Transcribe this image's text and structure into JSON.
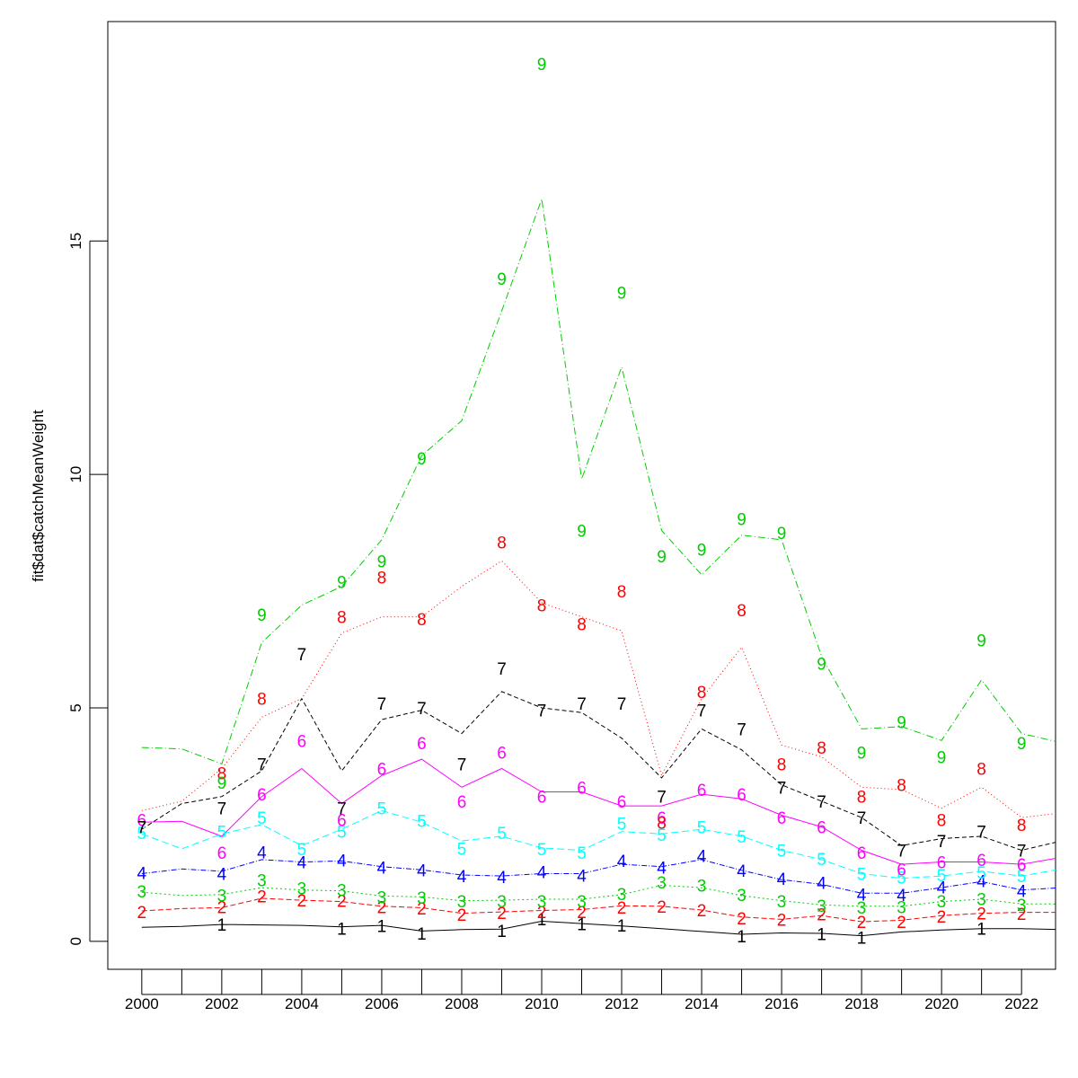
{
  "chart_data": {
    "type": "line",
    "title": "",
    "xlabel": "",
    "ylabel": "fit$dat$catchMeanWeight",
    "xlim": [
      1999.15,
      2022.85
    ],
    "ylim": [
      -0.6,
      19.7
    ],
    "x_ticks": [
      2000,
      2002,
      2004,
      2006,
      2008,
      2010,
      2012,
      2014,
      2016,
      2018,
      2020,
      2022
    ],
    "y_ticks": [
      0,
      5,
      10,
      15
    ],
    "grid": false,
    "legend": "none",
    "x": [
      2000,
      2001,
      2002,
      2003,
      2004,
      2005,
      2006,
      2007,
      2008,
      2009,
      2010,
      2011,
      2012,
      2013,
      2014,
      2015,
      2016,
      2017,
      2018,
      2019,
      2020,
      2021,
      2022,
      2023
    ],
    "series": [
      {
        "label": "1",
        "color": "#000000",
        "dash": "",
        "fitted": [
          0.3,
          0.32,
          0.36,
          0.35,
          0.34,
          0.31,
          0.34,
          0.22,
          0.25,
          0.26,
          0.43,
          0.38,
          0.33,
          0.27,
          0.21,
          0.15,
          0.18,
          0.17,
          0.12,
          0.2,
          0.24,
          0.27,
          0.27,
          0.25
        ],
        "observed": [
          null,
          null,
          0.36,
          null,
          null,
          0.28,
          0.33,
          0.17,
          null,
          0.23,
          0.48,
          0.37,
          0.34,
          null,
          null,
          0.11,
          null,
          0.16,
          0.08,
          null,
          null,
          0.28,
          null,
          null
        ]
      },
      {
        "label": "2",
        "color": "#ff0000",
        "dash": "6,3",
        "fitted": [
          0.65,
          0.7,
          0.72,
          0.92,
          0.88,
          0.85,
          0.75,
          0.72,
          0.6,
          0.63,
          0.66,
          0.68,
          0.76,
          0.75,
          0.67,
          0.52,
          0.47,
          0.55,
          0.42,
          0.45,
          0.55,
          0.6,
          0.62,
          0.62
        ],
        "observed": [
          0.63,
          null,
          0.74,
          0.97,
          0.88,
          0.87,
          0.74,
          0.71,
          0.57,
          0.61,
          0.63,
          0.63,
          0.73,
          0.75,
          0.67,
          0.5,
          0.47,
          0.58,
          0.42,
          0.42,
          0.54,
          0.6,
          0.59,
          null
        ]
      },
      {
        "label": "3",
        "color": "#00cd00",
        "dash": "2,3",
        "fitted": [
          1.05,
          0.98,
          1.0,
          1.15,
          1.1,
          1.08,
          0.97,
          0.95,
          0.87,
          0.88,
          0.9,
          0.9,
          1.0,
          1.2,
          1.15,
          0.98,
          0.87,
          0.78,
          0.75,
          0.75,
          0.85,
          0.9,
          0.8,
          0.8
        ],
        "observed": [
          1.07,
          null,
          0.99,
          1.31,
          1.14,
          1.1,
          0.95,
          0.94,
          0.86,
          0.86,
          0.86,
          0.86,
          1.02,
          1.27,
          1.2,
          1.0,
          0.86,
          0.77,
          0.73,
          0.74,
          0.86,
          0.91,
          0.79,
          null
        ]
      },
      {
        "label": "4",
        "color": "#0000ff",
        "dash": "6,2,1,2",
        "fitted": [
          1.45,
          1.55,
          1.5,
          1.75,
          1.7,
          1.72,
          1.6,
          1.53,
          1.42,
          1.4,
          1.45,
          1.45,
          1.65,
          1.6,
          1.75,
          1.52,
          1.32,
          1.22,
          1.03,
          1.03,
          1.15,
          1.28,
          1.1,
          1.15
        ],
        "observed": [
          1.47,
          null,
          1.45,
          1.91,
          1.7,
          1.74,
          1.58,
          1.53,
          1.4,
          1.38,
          1.49,
          1.41,
          1.73,
          1.58,
          1.83,
          1.52,
          1.34,
          1.26,
          1.01,
          1.0,
          1.16,
          1.3,
          1.08,
          null
        ]
      },
      {
        "label": "5",
        "color": "#00ffff",
        "dash": "8,4",
        "fitted": [
          2.3,
          1.98,
          2.3,
          2.5,
          2.05,
          2.4,
          2.8,
          2.55,
          2.15,
          2.25,
          2.0,
          1.95,
          2.35,
          2.3,
          2.4,
          2.25,
          1.95,
          1.75,
          1.45,
          1.35,
          1.4,
          1.5,
          1.4,
          1.55
        ],
        "observed": [
          2.32,
          null,
          2.35,
          2.65,
          1.98,
          2.35,
          2.85,
          2.58,
          1.99,
          2.32,
          1.98,
          1.9,
          2.53,
          2.29,
          2.45,
          2.25,
          1.95,
          1.77,
          1.45,
          1.37,
          1.42,
          1.48,
          1.4,
          null
        ]
      },
      {
        "label": "6",
        "color": "#ff00ff",
        "dash": "",
        "fitted": [
          2.55,
          2.57,
          2.25,
          3.1,
          3.7,
          2.95,
          3.55,
          3.9,
          3.3,
          3.7,
          3.2,
          3.2,
          2.9,
          2.9,
          3.15,
          3.05,
          2.7,
          2.45,
          1.95,
          1.65,
          1.7,
          1.7,
          1.65,
          1.8
        ],
        "observed": [
          2.6,
          null,
          1.9,
          3.15,
          4.3,
          2.6,
          3.7,
          4.25,
          3.0,
          4.05,
          3.1,
          3.3,
          3.0,
          2.65,
          3.25,
          3.15,
          2.65,
          2.45,
          1.9,
          1.55,
          1.7,
          1.75,
          1.65,
          null
        ]
      },
      {
        "label": "7",
        "color": "#000000",
        "dash": "5,3",
        "fitted": [
          2.4,
          2.95,
          3.1,
          3.65,
          5.2,
          3.65,
          4.75,
          4.95,
          4.45,
          5.35,
          5.0,
          4.9,
          4.35,
          3.5,
          4.55,
          4.1,
          3.35,
          3.0,
          2.65,
          2.05,
          2.2,
          2.25,
          1.95,
          2.15
        ],
        "observed": [
          2.45,
          null,
          2.85,
          3.8,
          6.15,
          2.85,
          5.1,
          5.0,
          3.8,
          5.85,
          4.95,
          5.1,
          5.1,
          3.1,
          4.95,
          4.55,
          3.3,
          3.0,
          2.65,
          1.95,
          2.15,
          2.35,
          1.95,
          null
        ]
      },
      {
        "label": "8",
        "color": "#ff0000",
        "dash": "1,3",
        "fitted": [
          2.8,
          3.0,
          3.7,
          4.8,
          5.2,
          6.6,
          6.95,
          6.95,
          7.6,
          8.15,
          7.25,
          6.95,
          6.65,
          3.55,
          5.2,
          6.3,
          4.2,
          3.95,
          3.3,
          3.25,
          2.85,
          3.3,
          2.65,
          2.75
        ],
        "observed": [
          null,
          null,
          3.6,
          5.2,
          null,
          6.95,
          7.8,
          6.9,
          null,
          8.55,
          7.2,
          6.8,
          7.5,
          2.55,
          5.35,
          7.1,
          3.8,
          4.15,
          3.1,
          3.35,
          2.6,
          3.7,
          2.5,
          null
        ]
      },
      {
        "label": "9",
        "color": "#00cd00",
        "dash": "8,3,1,3",
        "fitted": [
          4.15,
          4.12,
          3.8,
          6.4,
          7.2,
          7.6,
          8.6,
          10.4,
          11.15,
          13.5,
          15.9,
          9.9,
          12.3,
          8.8,
          7.85,
          8.7,
          8.6,
          6.1,
          4.55,
          4.6,
          4.3,
          5.6,
          4.45,
          4.25
        ],
        "observed": [
          null,
          null,
          3.4,
          7.0,
          null,
          7.7,
          8.15,
          10.35,
          null,
          14.2,
          18.8,
          8.8,
          13.9,
          8.25,
          8.4,
          9.05,
          8.75,
          5.95,
          4.05,
          4.7,
          3.95,
          6.45,
          4.25,
          null
        ]
      }
    ]
  }
}
